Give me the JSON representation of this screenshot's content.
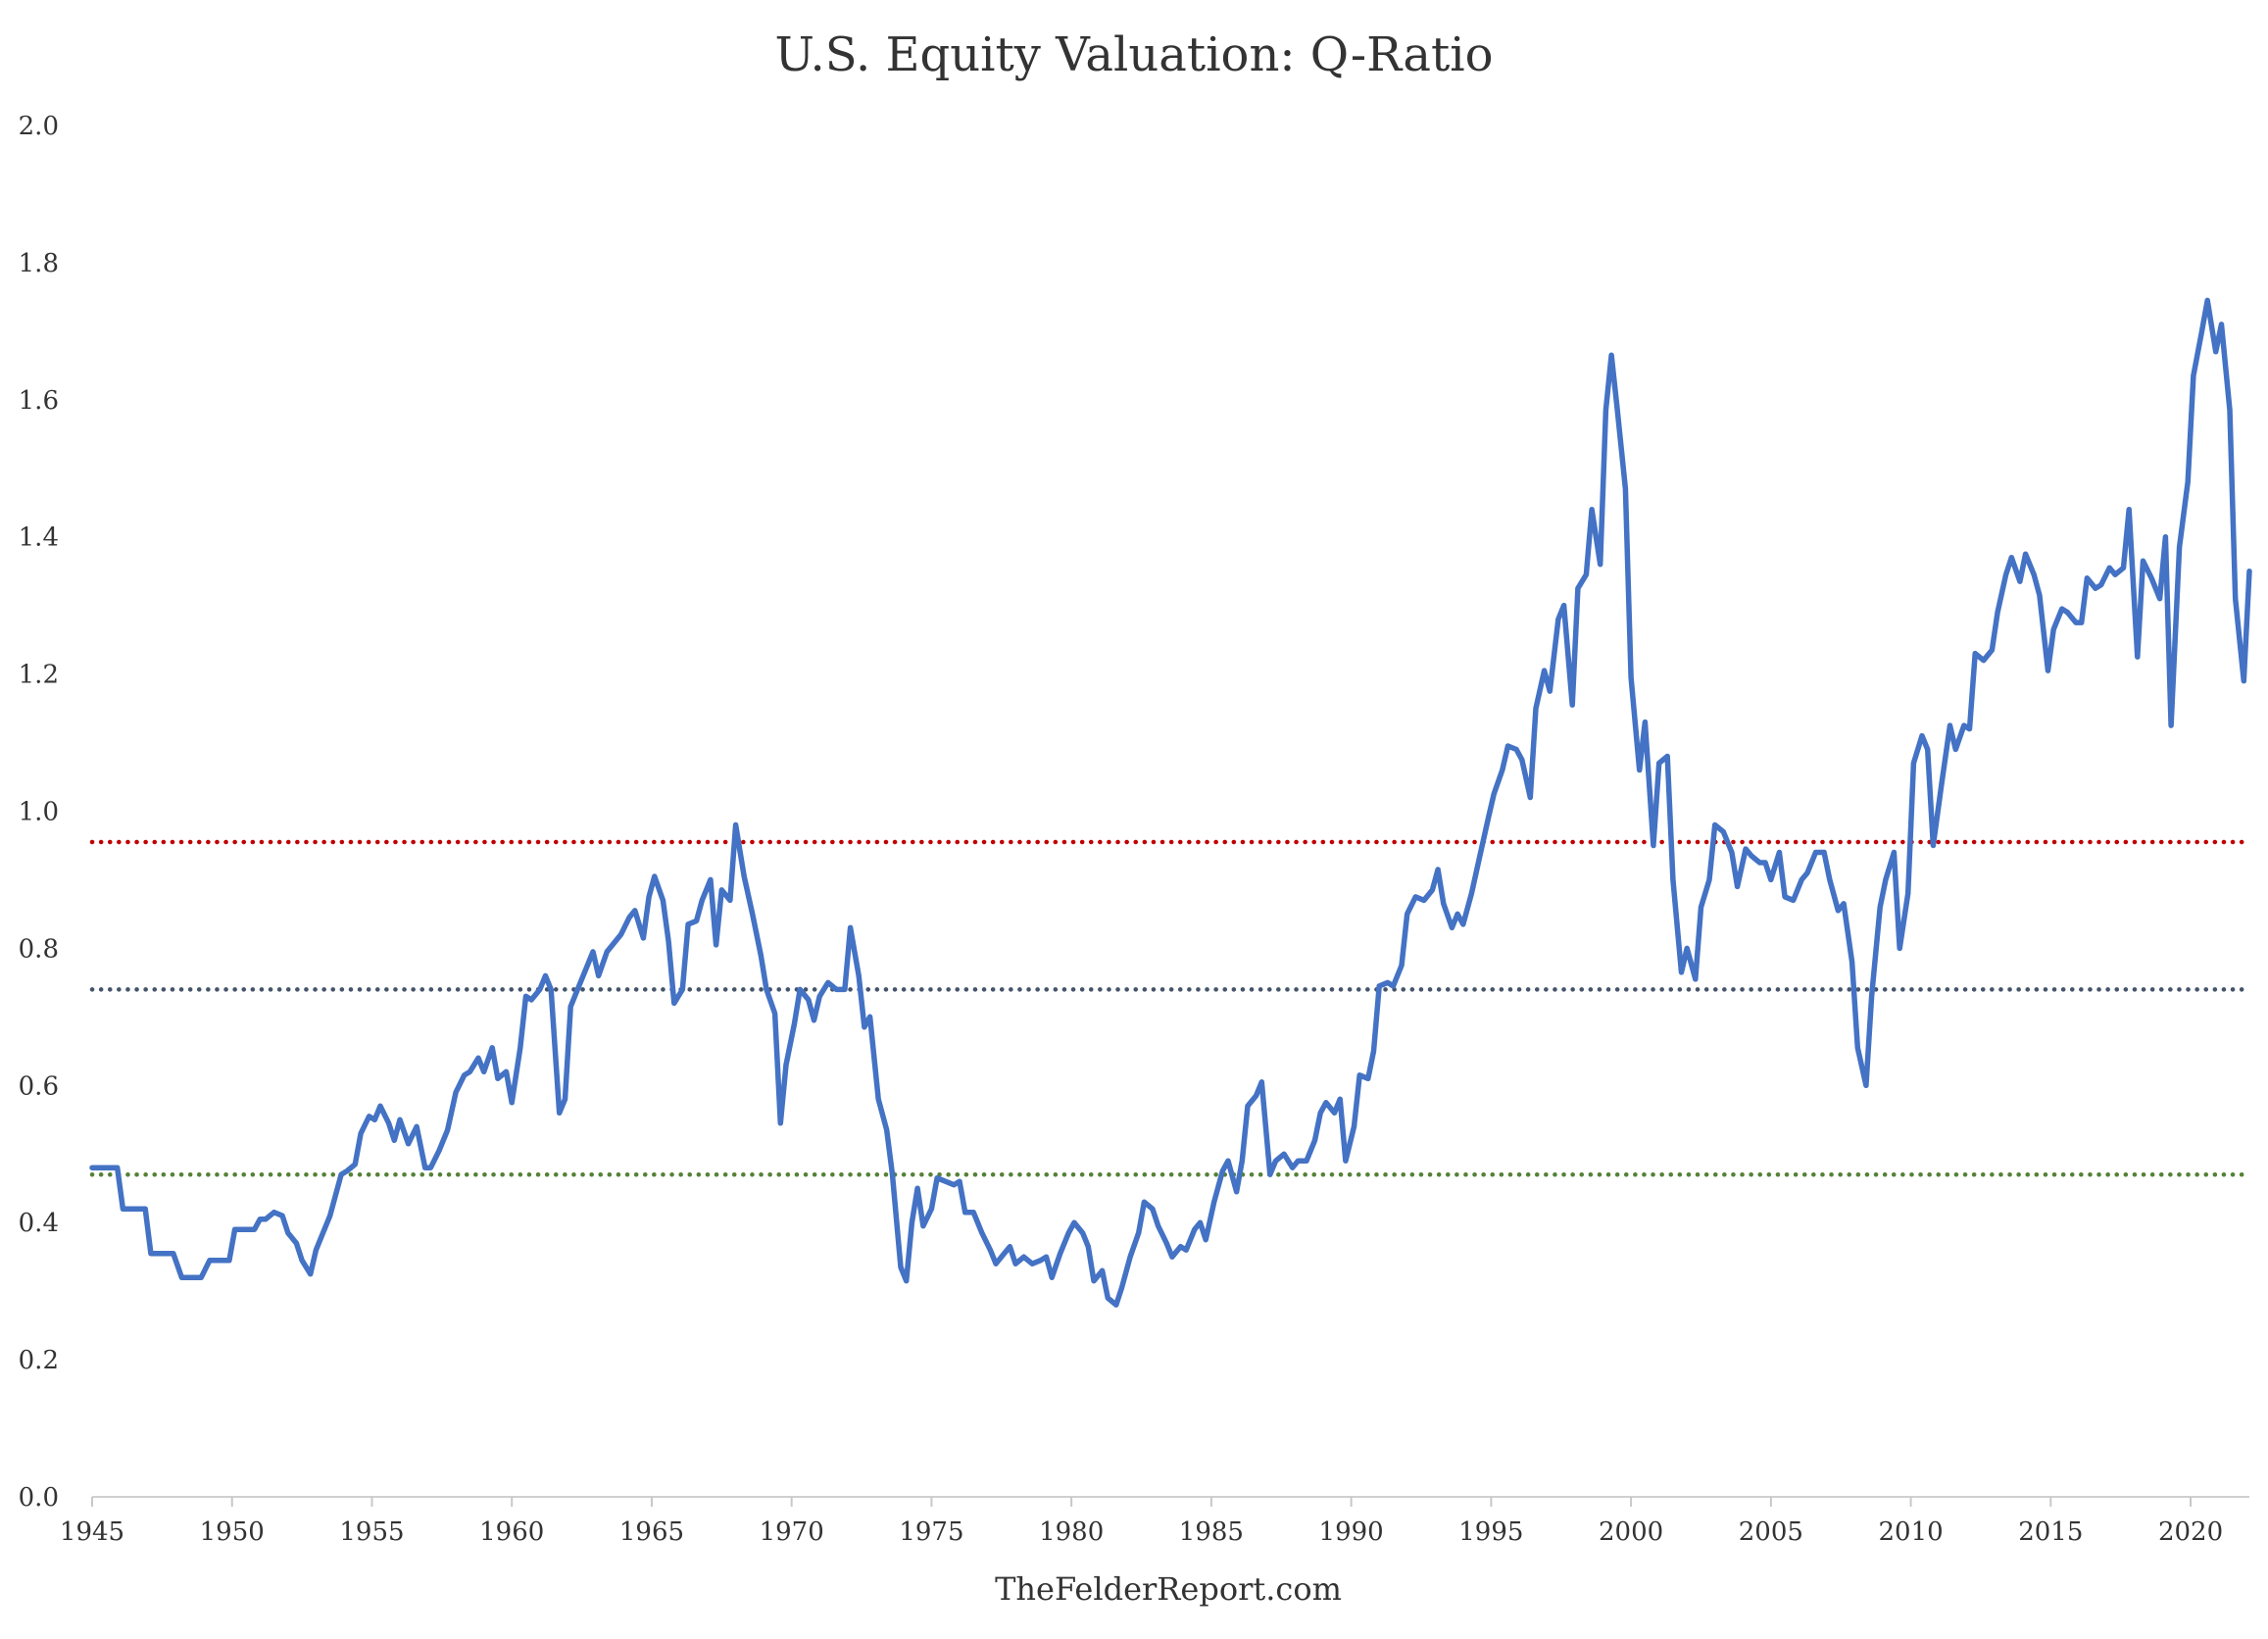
{
  "chart_data": {
    "type": "line",
    "title": "U.S. Equity Valuation: Q-Ratio",
    "xlabel": "TheFelderReport.com",
    "ylabel": "",
    "xlim": [
      1945,
      2022.1
    ],
    "ylim": [
      0.0,
      2.0
    ],
    "y_ticks": [
      "0.0",
      "0.2",
      "0.4",
      "0.6",
      "0.8",
      "1.0",
      "1.2",
      "1.4",
      "1.6",
      "1.8",
      "2.0"
    ],
    "x_ticks": [
      "1945",
      "1950",
      "1955",
      "1960",
      "1965",
      "1970",
      "1975",
      "1980",
      "1985",
      "1990",
      "1995",
      "2000",
      "2005",
      "2010",
      "2015",
      "2020"
    ],
    "grid": false,
    "legend": "none",
    "reference_lines": [
      {
        "value": 0.955,
        "color": "#c00000",
        "style": "dotted"
      },
      {
        "value": 0.74,
        "color": "#44546a",
        "style": "dotted"
      },
      {
        "value": 0.47,
        "color": "#548235",
        "style": "dotted"
      }
    ],
    "series": [
      {
        "color": "#4472c4",
        "points": [
          [
            1945.0,
            0.48
          ],
          [
            1945.9,
            0.48
          ],
          [
            1946.1,
            0.42
          ],
          [
            1946.9,
            0.42
          ],
          [
            1947.1,
            0.355
          ],
          [
            1947.9,
            0.355
          ],
          [
            1948.2,
            0.32
          ],
          [
            1948.9,
            0.32
          ],
          [
            1949.2,
            0.345
          ],
          [
            1949.9,
            0.345
          ],
          [
            1950.1,
            0.39
          ],
          [
            1950.8,
            0.39
          ],
          [
            1951.0,
            0.405
          ],
          [
            1951.2,
            0.405
          ],
          [
            1951.5,
            0.415
          ],
          [
            1951.8,
            0.41
          ],
          [
            1952.0,
            0.385
          ],
          [
            1952.3,
            0.37
          ],
          [
            1952.5,
            0.345
          ],
          [
            1952.8,
            0.325
          ],
          [
            1953.0,
            0.36
          ],
          [
            1953.5,
            0.41
          ],
          [
            1953.9,
            0.47
          ],
          [
            1954.1,
            0.475
          ],
          [
            1954.4,
            0.485
          ],
          [
            1954.6,
            0.53
          ],
          [
            1954.9,
            0.555
          ],
          [
            1955.1,
            0.55
          ],
          [
            1955.3,
            0.57
          ],
          [
            1955.6,
            0.545
          ],
          [
            1955.8,
            0.52
          ],
          [
            1956.0,
            0.55
          ],
          [
            1956.3,
            0.515
          ],
          [
            1956.6,
            0.54
          ],
          [
            1956.9,
            0.48
          ],
          [
            1957.1,
            0.48
          ],
          [
            1957.4,
            0.505
          ],
          [
            1957.7,
            0.535
          ],
          [
            1958.0,
            0.59
          ],
          [
            1958.3,
            0.615
          ],
          [
            1958.5,
            0.62
          ],
          [
            1958.8,
            0.64
          ],
          [
            1959.0,
            0.62
          ],
          [
            1959.3,
            0.655
          ],
          [
            1959.5,
            0.61
          ],
          [
            1959.8,
            0.62
          ],
          [
            1960.0,
            0.575
          ],
          [
            1960.3,
            0.655
          ],
          [
            1960.5,
            0.73
          ],
          [
            1960.7,
            0.725
          ],
          [
            1961.0,
            0.74
          ],
          [
            1961.2,
            0.76
          ],
          [
            1961.4,
            0.74
          ],
          [
            1961.7,
            0.56
          ],
          [
            1961.9,
            0.58
          ],
          [
            1962.1,
            0.715
          ],
          [
            1962.4,
            0.745
          ],
          [
            1962.7,
            0.775
          ],
          [
            1962.9,
            0.795
          ],
          [
            1963.1,
            0.76
          ],
          [
            1963.4,
            0.795
          ],
          [
            1963.7,
            0.81
          ],
          [
            1963.9,
            0.82
          ],
          [
            1964.2,
            0.845
          ],
          [
            1964.4,
            0.855
          ],
          [
            1964.7,
            0.815
          ],
          [
            1964.9,
            0.875
          ],
          [
            1965.1,
            0.905
          ],
          [
            1965.4,
            0.87
          ],
          [
            1965.6,
            0.81
          ],
          [
            1965.8,
            0.72
          ],
          [
            1966.1,
            0.74
          ],
          [
            1966.3,
            0.835
          ],
          [
            1966.6,
            0.84
          ],
          [
            1966.8,
            0.87
          ],
          [
            1967.1,
            0.9
          ],
          [
            1967.3,
            0.805
          ],
          [
            1967.5,
            0.885
          ],
          [
            1967.8,
            0.87
          ],
          [
            1968.0,
            0.98
          ],
          [
            1968.3,
            0.905
          ],
          [
            1968.6,
            0.85
          ],
          [
            1968.9,
            0.79
          ],
          [
            1969.1,
            0.74
          ],
          [
            1969.4,
            0.705
          ],
          [
            1969.6,
            0.545
          ],
          [
            1969.8,
            0.63
          ],
          [
            1970.1,
            0.69
          ],
          [
            1970.3,
            0.74
          ],
          [
            1970.6,
            0.725
          ],
          [
            1970.8,
            0.695
          ],
          [
            1971.0,
            0.73
          ],
          [
            1971.3,
            0.75
          ],
          [
            1971.6,
            0.74
          ],
          [
            1971.9,
            0.74
          ],
          [
            1972.1,
            0.83
          ],
          [
            1972.4,
            0.76
          ],
          [
            1972.6,
            0.685
          ],
          [
            1972.8,
            0.7
          ],
          [
            1973.1,
            0.58
          ],
          [
            1973.4,
            0.535
          ],
          [
            1973.6,
            0.47
          ],
          [
            1973.9,
            0.335
          ],
          [
            1974.1,
            0.315
          ],
          [
            1974.3,
            0.4
          ],
          [
            1974.5,
            0.45
          ],
          [
            1974.7,
            0.395
          ],
          [
            1975.0,
            0.42
          ],
          [
            1975.2,
            0.465
          ],
          [
            1975.5,
            0.46
          ],
          [
            1975.8,
            0.455
          ],
          [
            1976.0,
            0.46
          ],
          [
            1976.2,
            0.415
          ],
          [
            1976.5,
            0.415
          ],
          [
            1976.8,
            0.385
          ],
          [
            1977.1,
            0.36
          ],
          [
            1977.3,
            0.34
          ],
          [
            1977.6,
            0.355
          ],
          [
            1977.8,
            0.365
          ],
          [
            1978.0,
            0.34
          ],
          [
            1978.3,
            0.35
          ],
          [
            1978.6,
            0.34
          ],
          [
            1978.9,
            0.345
          ],
          [
            1979.1,
            0.35
          ],
          [
            1979.3,
            0.32
          ],
          [
            1979.6,
            0.355
          ],
          [
            1979.9,
            0.385
          ],
          [
            1980.1,
            0.4
          ],
          [
            1980.4,
            0.385
          ],
          [
            1980.6,
            0.365
          ],
          [
            1980.8,
            0.315
          ],
          [
            1981.1,
            0.33
          ],
          [
            1981.3,
            0.29
          ],
          [
            1981.6,
            0.28
          ],
          [
            1981.8,
            0.305
          ],
          [
            1982.1,
            0.35
          ],
          [
            1982.4,
            0.385
          ],
          [
            1982.6,
            0.43
          ],
          [
            1982.9,
            0.42
          ],
          [
            1983.1,
            0.395
          ],
          [
            1983.4,
            0.37
          ],
          [
            1983.6,
            0.35
          ],
          [
            1983.9,
            0.365
          ],
          [
            1984.1,
            0.36
          ],
          [
            1984.4,
            0.39
          ],
          [
            1984.6,
            0.4
          ],
          [
            1984.8,
            0.375
          ],
          [
            1985.1,
            0.43
          ],
          [
            1985.4,
            0.475
          ],
          [
            1985.6,
            0.49
          ],
          [
            1985.9,
            0.445
          ],
          [
            1986.1,
            0.49
          ],
          [
            1986.3,
            0.57
          ],
          [
            1986.6,
            0.585
          ],
          [
            1986.8,
            0.605
          ],
          [
            1987.1,
            0.47
          ],
          [
            1987.3,
            0.49
          ],
          [
            1987.6,
            0.5
          ],
          [
            1987.9,
            0.48
          ],
          [
            1988.1,
            0.49
          ],
          [
            1988.4,
            0.49
          ],
          [
            1988.7,
            0.52
          ],
          [
            1988.9,
            0.56
          ],
          [
            1989.1,
            0.575
          ],
          [
            1989.4,
            0.56
          ],
          [
            1989.6,
            0.58
          ],
          [
            1989.8,
            0.49
          ],
          [
            1990.1,
            0.54
          ],
          [
            1990.3,
            0.615
          ],
          [
            1990.6,
            0.61
          ],
          [
            1990.8,
            0.65
          ],
          [
            1991.0,
            0.745
          ],
          [
            1991.3,
            0.75
          ],
          [
            1991.5,
            0.745
          ],
          [
            1991.8,
            0.775
          ],
          [
            1992.0,
            0.85
          ],
          [
            1992.3,
            0.875
          ],
          [
            1992.6,
            0.87
          ],
          [
            1992.9,
            0.885
          ],
          [
            1993.1,
            0.915
          ],
          [
            1993.3,
            0.865
          ],
          [
            1993.6,
            0.83
          ],
          [
            1993.8,
            0.85
          ],
          [
            1994.0,
            0.835
          ],
          [
            1994.3,
            0.88
          ],
          [
            1994.6,
            0.935
          ],
          [
            1994.9,
            0.99
          ],
          [
            1995.1,
            1.025
          ],
          [
            1995.4,
            1.06
          ],
          [
            1995.6,
            1.095
          ],
          [
            1995.9,
            1.09
          ],
          [
            1996.1,
            1.075
          ],
          [
            1996.4,
            1.02
          ],
          [
            1996.6,
            1.15
          ],
          [
            1996.9,
            1.205
          ],
          [
            1997.1,
            1.175
          ],
          [
            1997.4,
            1.28
          ],
          [
            1997.6,
            1.3
          ],
          [
            1997.9,
            1.155
          ],
          [
            1998.1,
            1.325
          ],
          [
            1998.4,
            1.345
          ],
          [
            1998.6,
            1.44
          ],
          [
            1998.9,
            1.36
          ],
          [
            1999.1,
            1.585
          ],
          [
            1999.3,
            1.665
          ],
          [
            1999.5,
            1.59
          ],
          [
            1999.8,
            1.47
          ],
          [
            2000.0,
            1.195
          ],
          [
            2000.3,
            1.06
          ],
          [
            2000.5,
            1.13
          ],
          [
            2000.8,
            0.95
          ],
          [
            2001.0,
            1.07
          ],
          [
            2001.3,
            1.08
          ],
          [
            2001.5,
            0.9
          ],
          [
            2001.8,
            0.765
          ],
          [
            2002.0,
            0.8
          ],
          [
            2002.3,
            0.755
          ],
          [
            2002.5,
            0.86
          ],
          [
            2002.8,
            0.9
          ],
          [
            2003.0,
            0.98
          ],
          [
            2003.3,
            0.97
          ],
          [
            2003.6,
            0.94
          ],
          [
            2003.8,
            0.89
          ],
          [
            2004.1,
            0.945
          ],
          [
            2004.3,
            0.935
          ],
          [
            2004.6,
            0.925
          ],
          [
            2004.8,
            0.925
          ],
          [
            2005.0,
            0.9
          ],
          [
            2005.3,
            0.94
          ],
          [
            2005.5,
            0.875
          ],
          [
            2005.8,
            0.87
          ],
          [
            2006.1,
            0.9
          ],
          [
            2006.3,
            0.91
          ],
          [
            2006.6,
            0.94
          ],
          [
            2006.9,
            0.94
          ],
          [
            2007.1,
            0.9
          ],
          [
            2007.4,
            0.855
          ],
          [
            2007.6,
            0.865
          ],
          [
            2007.9,
            0.78
          ],
          [
            2008.1,
            0.655
          ],
          [
            2008.4,
            0.6
          ],
          [
            2008.6,
            0.73
          ],
          [
            2008.9,
            0.86
          ],
          [
            2009.1,
            0.9
          ],
          [
            2009.4,
            0.94
          ],
          [
            2009.6,
            0.8
          ],
          [
            2009.9,
            0.88
          ],
          [
            2010.1,
            1.07
          ],
          [
            2010.4,
            1.11
          ],
          [
            2010.6,
            1.09
          ],
          [
            2010.8,
            0.95
          ],
          [
            2011.1,
            1.04
          ],
          [
            2011.4,
            1.125
          ],
          [
            2011.6,
            1.09
          ],
          [
            2011.9,
            1.125
          ],
          [
            2012.1,
            1.12
          ],
          [
            2012.3,
            1.23
          ],
          [
            2012.6,
            1.22
          ],
          [
            2012.9,
            1.235
          ],
          [
            2013.1,
            1.29
          ],
          [
            2013.4,
            1.345
          ],
          [
            2013.6,
            1.37
          ],
          [
            2013.9,
            1.335
          ],
          [
            2014.1,
            1.375
          ],
          [
            2014.4,
            1.345
          ],
          [
            2014.6,
            1.315
          ],
          [
            2014.9,
            1.205
          ],
          [
            2015.1,
            1.265
          ],
          [
            2015.4,
            1.295
          ],
          [
            2015.6,
            1.29
          ],
          [
            2015.9,
            1.275
          ],
          [
            2016.1,
            1.275
          ],
          [
            2016.3,
            1.34
          ],
          [
            2016.6,
            1.325
          ],
          [
            2016.8,
            1.33
          ],
          [
            2017.1,
            1.355
          ],
          [
            2017.3,
            1.345
          ],
          [
            2017.6,
            1.355
          ],
          [
            2017.8,
            1.44
          ],
          [
            2018.1,
            1.225
          ],
          [
            2018.3,
            1.365
          ],
          [
            2018.6,
            1.34
          ],
          [
            2018.9,
            1.31
          ],
          [
            2019.1,
            1.4
          ],
          [
            2019.3,
            1.125
          ],
          [
            2019.6,
            1.385
          ],
          [
            2019.9,
            1.48
          ],
          [
            2020.1,
            1.635
          ],
          [
            2020.4,
            1.7
          ],
          [
            2020.6,
            1.745
          ],
          [
            2020.9,
            1.67
          ],
          [
            2021.1,
            1.71
          ],
          [
            2021.4,
            1.585
          ],
          [
            2021.6,
            1.31
          ],
          [
            2021.9,
            1.19
          ],
          [
            2022.1,
            1.35
          ]
        ]
      }
    ]
  }
}
